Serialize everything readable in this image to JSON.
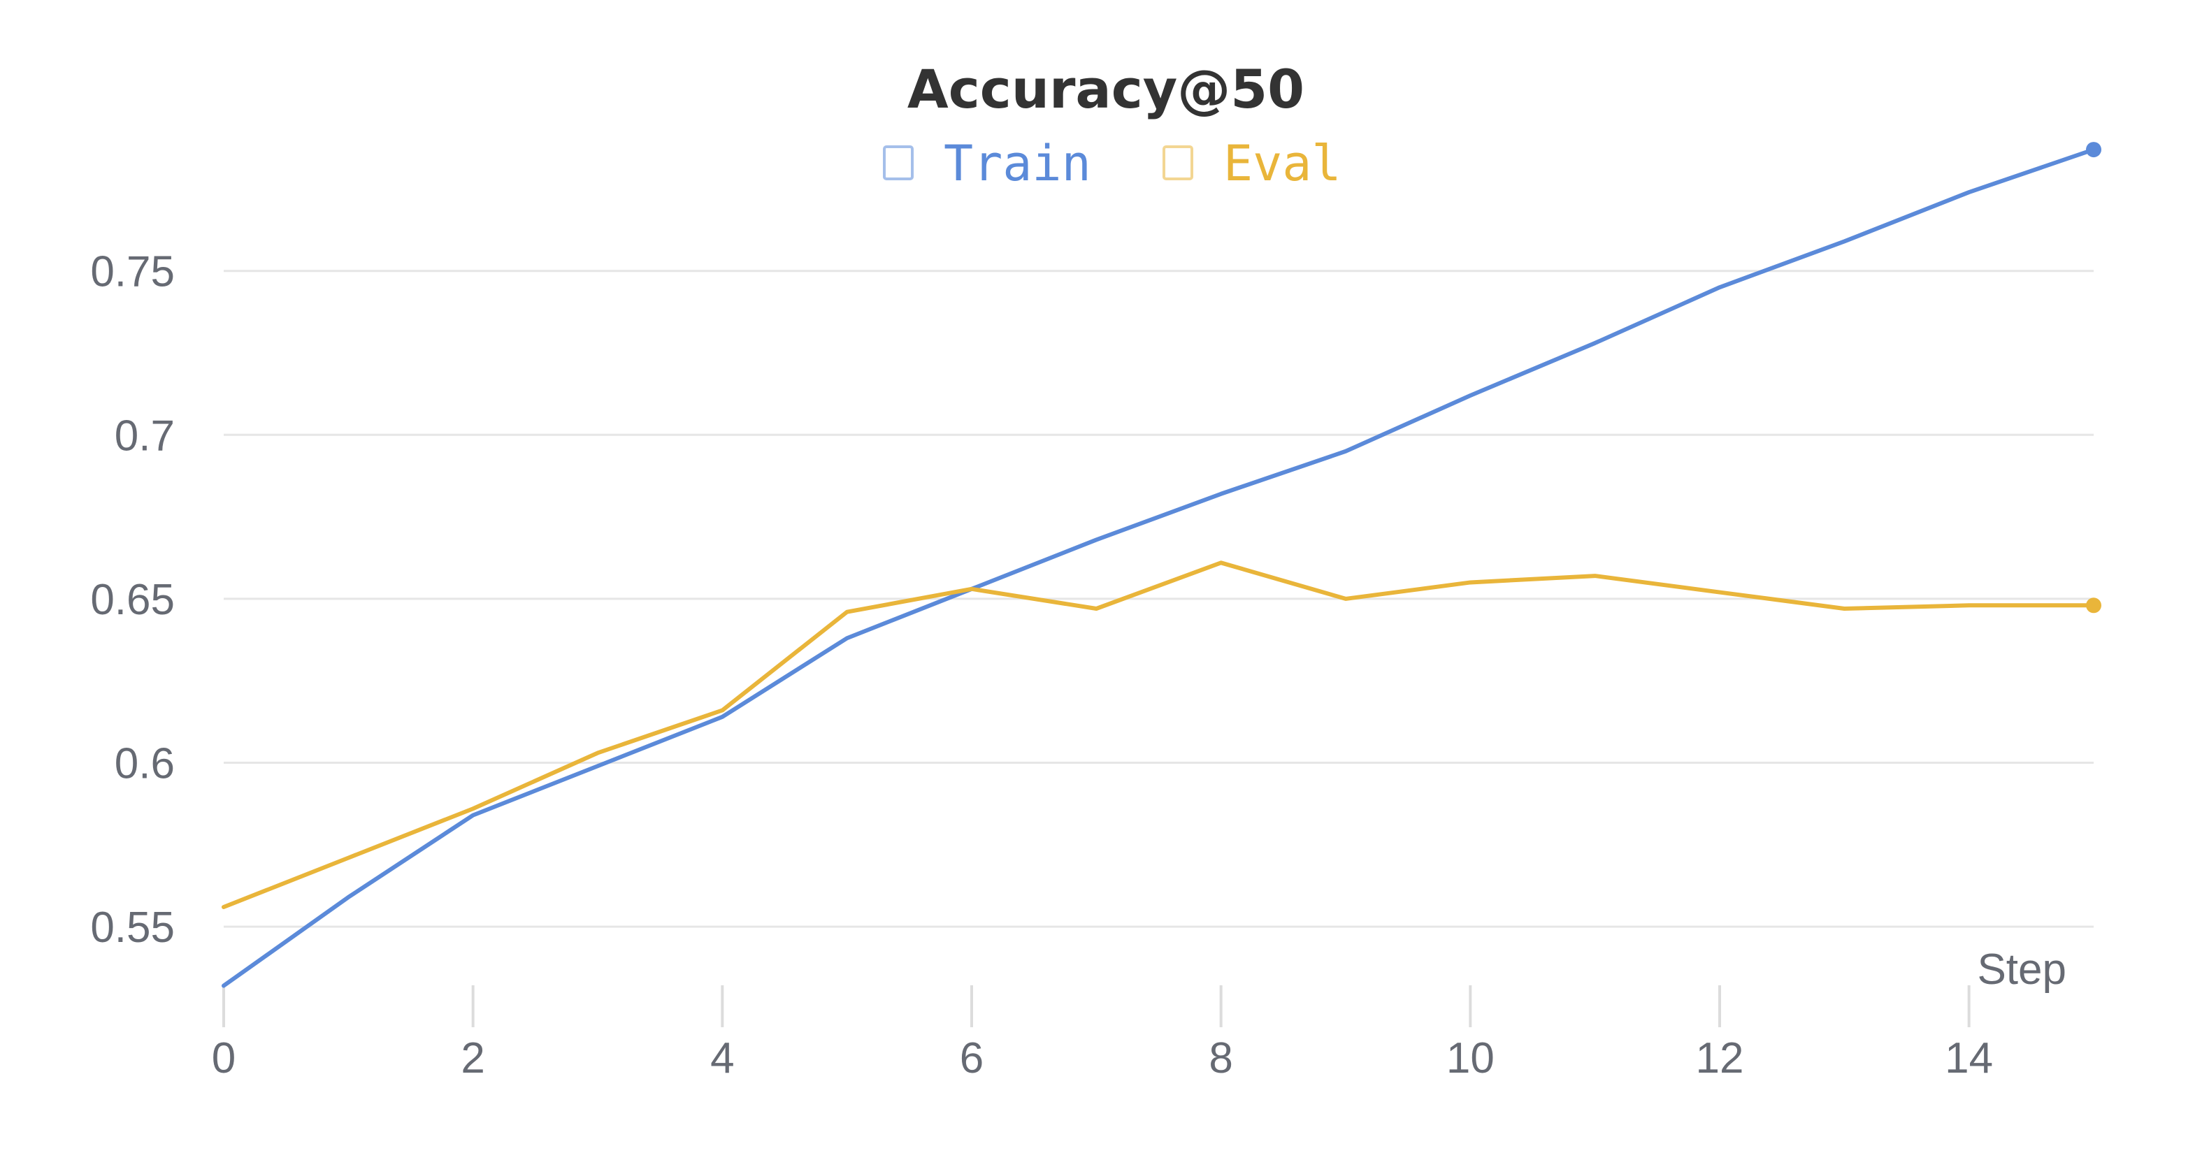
{
  "chart_data": {
    "type": "line",
    "title": "Accuracy@50",
    "xlabel": "Step",
    "ylabel": "",
    "xlim": [
      0,
      15
    ],
    "ylim": [
      0.53,
      0.79
    ],
    "x_ticks": [
      0,
      2,
      4,
      6,
      8,
      10,
      12,
      14
    ],
    "x_tick_labels": [
      "0",
      "2",
      "4",
      "6",
      "8",
      "10",
      "12",
      "14"
    ],
    "y_ticks": [
      0.55,
      0.6,
      0.65,
      0.7,
      0.75
    ],
    "y_tick_labels": [
      "0.55",
      "0.6",
      "0.65",
      "0.7",
      "0.75"
    ],
    "grid": true,
    "legend_position": "top-center",
    "x": [
      0,
      1,
      2,
      3,
      4,
      5,
      6,
      7,
      8,
      9,
      10,
      11,
      12,
      13,
      14,
      15
    ],
    "series": [
      {
        "name": "Train",
        "color": "#5b8ad9",
        "values": [
          0.532,
          0.559,
          0.584,
          0.599,
          0.614,
          0.638,
          0.653,
          0.668,
          0.682,
          0.695,
          0.712,
          0.728,
          0.745,
          0.759,
          0.774,
          0.787
        ]
      },
      {
        "name": "Eval",
        "color": "#e9b53a",
        "values": [
          0.556,
          0.571,
          0.586,
          0.603,
          0.616,
          0.646,
          0.653,
          0.647,
          0.661,
          0.65,
          0.655,
          0.657,
          0.652,
          0.647,
          0.648,
          0.648
        ]
      }
    ]
  }
}
